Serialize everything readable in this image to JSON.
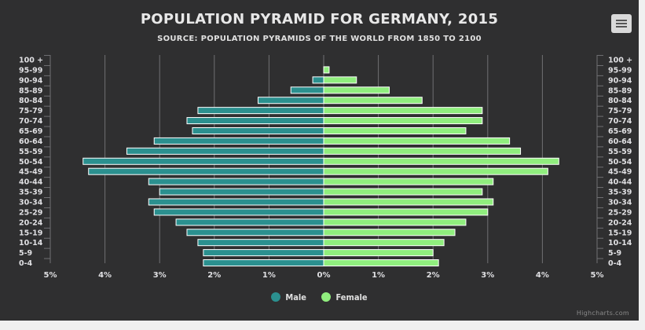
{
  "title": "POPULATION PYRAMID FOR GERMANY, 2015",
  "subtitle": "SOURCE: POPULATION PYRAMIDS OF THE WORLD FROM 1850 TO 2100",
  "credits": "Highcharts.com",
  "colors": {
    "male": "#2b908f",
    "female": "#90ee7e",
    "background": "#2f2f30",
    "grid": "#707073",
    "text": "#e0e0e3"
  },
  "icons": {
    "menu": "hamburger-menu-icon"
  },
  "chart_data": {
    "type": "bar",
    "title": "POPULATION PYRAMID FOR GERMANY, 2015",
    "subtitle": "SOURCE: POPULATION PYRAMIDS OF THE WORLD FROM 1850 TO 2100",
    "categories": [
      "100 +",
      "95-99",
      "90-94",
      "85-89",
      "80-84",
      "75-79",
      "70-74",
      "65-69",
      "60-64",
      "55-59",
      "50-54",
      "45-49",
      "40-44",
      "35-39",
      "30-34",
      "25-29",
      "20-24",
      "15-19",
      "10-14",
      "5-9",
      "0-4"
    ],
    "xlim": [
      -5,
      5
    ],
    "ticks": [
      -5,
      -4,
      -3,
      -2,
      -1,
      0,
      1,
      2,
      3,
      4,
      5
    ],
    "tick_labels": [
      "5%",
      "4%",
      "3%",
      "2%",
      "1%",
      "0%",
      "1%",
      "2%",
      "3%",
      "4%",
      "5%"
    ],
    "grid": true,
    "legend_position": "bottom-center",
    "series": [
      {
        "name": "Male",
        "values": [
          0.0,
          0.0,
          0.2,
          0.6,
          1.2,
          2.3,
          2.5,
          2.4,
          3.1,
          3.6,
          4.4,
          4.3,
          3.2,
          3.0,
          3.2,
          3.1,
          2.7,
          2.5,
          2.3,
          2.2,
          2.2
        ]
      },
      {
        "name": "Female",
        "values": [
          0.0,
          0.1,
          0.6,
          1.2,
          1.8,
          2.9,
          2.9,
          2.6,
          3.4,
          3.6,
          4.3,
          4.1,
          3.1,
          2.9,
          3.1,
          3.0,
          2.6,
          2.4,
          2.2,
          2.0,
          2.1
        ]
      }
    ]
  }
}
